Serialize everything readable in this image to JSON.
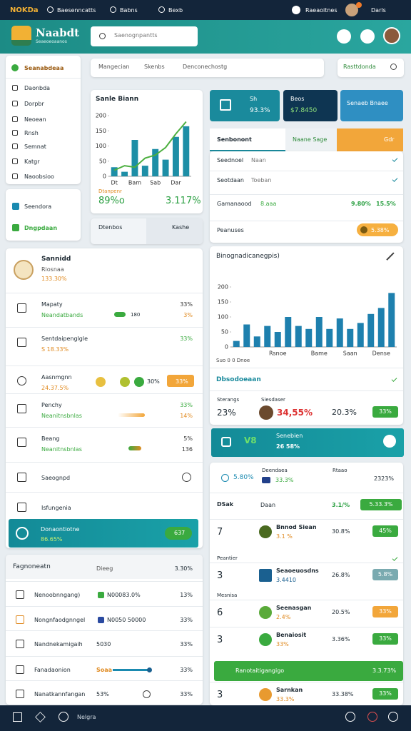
{
  "topbar": {
    "logo": "NOKDa",
    "links": [
      "Baesenncatts",
      "Babns",
      "Bexb"
    ],
    "user": "Raeaoitnes",
    "mode": "Darls"
  },
  "header": {
    "brand": "Naabdt",
    "tagline": "Seaeoeoaanos",
    "search": "Saenognpantts"
  },
  "sidebar": {
    "items": [
      "Seanabdeaa",
      "Daonbda",
      "Dorpbr",
      "Neoean",
      "Rnsh",
      "Semnat",
      "Katgr",
      "Naoobsioo"
    ],
    "extra": [
      "Seendora",
      "Dngpdaan"
    ]
  },
  "filters": {
    "items": [
      "Mangecian",
      "Skenbs",
      "Denconechostg"
    ],
    "action": "Rasttdonda"
  },
  "chart_data": [
    {
      "type": "bar-line",
      "title": "Sanle Biann",
      "subtitle": "Dtanpenr",
      "stats": [
        "89%o",
        "3.117%"
      ],
      "categories": [
        "Dt",
        null,
        "Bam",
        null,
        "Sab",
        null,
        "Dar",
        null
      ],
      "series": [
        {
          "type": "bar",
          "color": "#1d8ea6",
          "values": [
            30,
            15,
            120,
            35,
            90,
            55,
            130,
            165
          ]
        },
        {
          "type": "line",
          "color": "#4caf3f",
          "values": [
            20,
            35,
            30,
            60,
            70,
            95,
            140,
            180
          ]
        }
      ],
      "ylim": [
        0,
        200
      ],
      "yticks": [
        0,
        50,
        100,
        150,
        200
      ],
      "grid": false
    },
    {
      "type": "bar",
      "title": "Binognadicanegpis)",
      "note": "Suo  0  0  Dnoe",
      "categories": [
        null,
        null,
        null,
        null,
        "Rsnoe",
        null,
        null,
        null,
        "Bame",
        null,
        null,
        "Saan",
        null,
        null,
        "Dense",
        null
      ],
      "series": [
        {
          "type": "bar",
          "color": "#1e80ae",
          "values": [
            20,
            75,
            35,
            70,
            50,
            100,
            70,
            60,
            100,
            60,
            95,
            60,
            80,
            110,
            130,
            180
          ]
        }
      ],
      "ylim": [
        0,
        200
      ],
      "yticks": [
        0,
        50,
        100,
        150,
        200
      ],
      "grid": false
    }
  ],
  "mini_card": {
    "left": "Dtenbos",
    "right": "Kashe"
  },
  "quick": [
    {
      "label": "Sh",
      "value": "93.3%"
    },
    {
      "label": "Beos",
      "value": "$7.8450"
    },
    {
      "label": "Senaeb Bnaee"
    }
  ],
  "tabs": [
    "Senbonont",
    "Naane Sage",
    "Gdr"
  ],
  "summary": [
    {
      "label": "Seednoel",
      "extra": "Naan"
    },
    {
      "label": "Seotdaan",
      "extra": "Toeban"
    },
    {
      "label": "Gamanaood",
      "a": "8.aaa",
      "b": "9.80%",
      "c": "15.5%"
    },
    {
      "label": "Peanuses",
      "badge": "5.38%"
    }
  ],
  "insight": {
    "title": "Dbsodoeaan",
    "label": "Sterangs",
    "v1": "23%",
    "name": "Siesdaser",
    "v2": "34,55%",
    "v3": "20.3%",
    "badge": "33%"
  },
  "teal_banner": {
    "code": "V8",
    "title": "Senebien",
    "value": "26 58%"
  },
  "ranking": {
    "header": {
      "a": "5.80%",
      "b": "Deendaea",
      "c": "33.3%",
      "d": "Rtaao",
      "e": "2323%"
    },
    "rows": [
      {
        "rank": "DSak",
        "name": "Daan",
        "pct": "3.1/%",
        "badge": "5.33.3%"
      },
      {
        "rank": "7",
        "name": "Bnnod Siean",
        "sub": "3.1 %",
        "pct": "30.8%",
        "badge": "45%"
      },
      {
        "label": "Peantier",
        "rank": "3",
        "name": "Seaoeuosdns",
        "sub": "3.4410",
        "pct": "26.8%",
        "badge": "5.8%"
      },
      {
        "label": "Mesnisa",
        "rank": "6",
        "name": "Seenasgan",
        "sub": "2.4%",
        "pct": "20.5%",
        "badge": "33%"
      },
      {
        "rank": "3",
        "name": "Benaiosit",
        "sub": "33%",
        "pct": "3.36%",
        "badge": "33%"
      },
      {
        "rank": "3",
        "name": "Sarnkan",
        "sub": "33.3%",
        "pct": "33.38%",
        "badge": "33%"
      }
    ],
    "banner": {
      "text": "Ranotaitigangigo",
      "value": "3.3.73%"
    }
  },
  "activity": {
    "header": {
      "title": "Sannidd",
      "sub": "Riosnaa",
      "value": "133.30%"
    },
    "rows": [
      {
        "title": "Mapaty",
        "sub": "Neandatbands",
        "mid": "180",
        "v1": "33%",
        "v2": "3%"
      },
      {
        "title": "Sentdaipenglgle",
        "sub": "S 18.33%",
        "v1": "33%"
      },
      {
        "title": "Aasnmgnn",
        "sub": "24.37.5%",
        "mid": "30%",
        "btn": "33%"
      },
      {
        "title": "Penchy",
        "sub": "Neanitnsbnlas",
        "v1": "33%",
        "v2": "14%"
      },
      {
        "title": "Beang",
        "sub": "Neanitnsbnlas",
        "v1": "5%",
        "v2": "136"
      },
      {
        "title": "Saeognpd"
      },
      {
        "title": "Isfungenia"
      }
    ],
    "banner": {
      "title": "Donaontiotne",
      "value": "86.65%",
      "btn": "637"
    }
  },
  "report": {
    "header": {
      "title": "Fagnoneatn",
      "mid": "Dieeg",
      "value": "3.30%"
    },
    "rows": [
      {
        "name": "Nenoobnngang)",
        "mid": "N00083.0%",
        "v": "13%"
      },
      {
        "name": "Nongnfaodgnngel",
        "mid": "N0050 50000",
        "v": "33%"
      },
      {
        "name": "Nandnekamigaih",
        "mid": "5030",
        "v": "33%"
      },
      {
        "name": "Fanadaonion",
        "mid": "Soaa",
        "v": "33%"
      },
      {
        "name": "Nanatkannfangan",
        "mid": "53%",
        "v": "33%"
      }
    ]
  },
  "nav": {
    "label": "Nelgra"
  }
}
